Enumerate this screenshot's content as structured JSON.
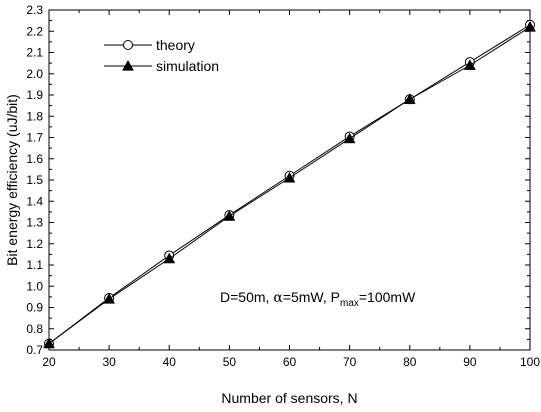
{
  "chart_data": {
    "type": "line",
    "xlabel": "Number of sensors, N",
    "ylabel": "Bit energy efficiency (uJ/bit)",
    "xlim": [
      20,
      100
    ],
    "ylim": [
      0.7,
      2.3
    ],
    "xticks": [
      "20",
      "30",
      "40",
      "50",
      "60",
      "70",
      "80",
      "90",
      "100"
    ],
    "yticks": [
      "0.7",
      "0.8",
      "0.9",
      "1.0",
      "1.1",
      "1.2",
      "1.3",
      "1.4",
      "1.5",
      "1.6",
      "1.7",
      "1.8",
      "1.9",
      "2.0",
      "2.1",
      "2.2",
      "2.3"
    ],
    "grid": false,
    "legend_position": "top-left",
    "series": [
      {
        "name": "theory",
        "marker": "open-circle",
        "x": [
          20,
          30,
          40,
          50,
          60,
          70,
          80,
          90,
          100
        ],
        "y": [
          0.73,
          0.945,
          1.145,
          1.335,
          1.52,
          1.705,
          1.88,
          2.055,
          2.23
        ]
      },
      {
        "name": "simulation",
        "marker": "filled-triangle",
        "x": [
          20,
          30,
          40,
          50,
          60,
          70,
          80,
          90,
          100
        ],
        "y": [
          0.73,
          0.94,
          1.13,
          1.33,
          1.51,
          1.695,
          1.88,
          2.04,
          2.22
        ]
      }
    ],
    "annotation": {
      "part1": "D=50m, ",
      "alpha": "α",
      "part2": "=5mW, P",
      "sub": "max",
      "part3": "=100mW"
    }
  }
}
